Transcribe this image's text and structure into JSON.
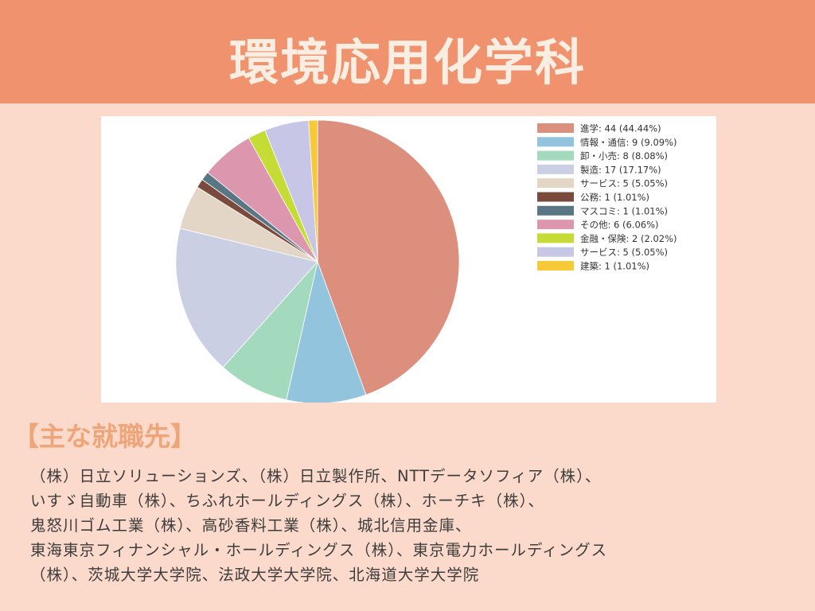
{
  "header": {
    "title": "環境応用化学科",
    "background_color": "#f0926d"
  },
  "chart_data": {
    "type": "pie",
    "title": "",
    "start": "top",
    "direction": "clockwise",
    "legend_placement": "top-right",
    "slices": [
      {
        "label": "進学: 44 (44.44%)",
        "value": 44,
        "color": "#dc8f7d"
      },
      {
        "label": "情報・通信: 9 (9.09%)",
        "value": 9,
        "color": "#92c4de"
      },
      {
        "label": "卸・小売: 8 (8.08%)",
        "value": 8,
        "color": "#a3d9bd"
      },
      {
        "label": "製造: 17 (17.17%)",
        "value": 17,
        "color": "#cbcfe4"
      },
      {
        "label": "サービス: 5 (5.05%)",
        "value": 5,
        "color": "#e3d6c6"
      },
      {
        "label": "公務: 1 (1.01%)",
        "value": 1,
        "color": "#7a4a3d"
      },
      {
        "label": "マスコミ: 1 (1.01%)",
        "value": 1,
        "color": "#5a7684"
      },
      {
        "label": "その他: 6 (6.06%)",
        "value": 6,
        "color": "#dc96ad"
      },
      {
        "label": "金融・保険: 2 (2.02%)",
        "value": 2,
        "color": "#c6dc36"
      },
      {
        "label": "サービス: 5 (5.05%)",
        "value": 5,
        "color": "#c8c6e6"
      },
      {
        "label": "建築: 1 (1.01%)",
        "value": 1,
        "color": "#f7c936"
      }
    ]
  },
  "employers": {
    "heading": "【主な就職先】",
    "lines": [
      "（株）日立ソリューションズ、（株）日立製作所、NTTデータソフィア（株）、",
      "いすゞ自動車（株）、ちふれホールディングス（株）、ホーチキ（株）、",
      "鬼怒川ゴム工業（株）、高砂香料工業（株）、城北信用金庫、",
      "東海東京フィナンシャル・ホールディングス（株）、東京電力ホールディングス",
      "（株）、茨城大学大学院、法政大学大学院、北海道大学大学院"
    ]
  }
}
